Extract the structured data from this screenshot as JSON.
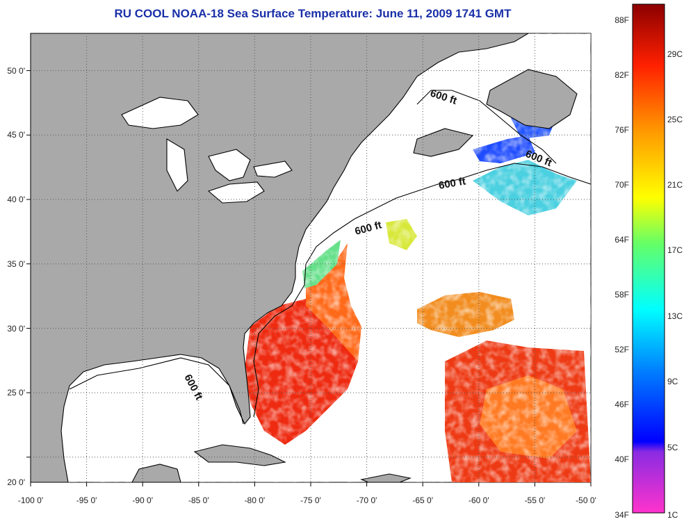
{
  "title": "RU COOL  NOAA-18  Sea Surface Temperature:  June 11, 2009 1741 GMT",
  "map": {
    "lon_ticks": [
      "-100 0'",
      "-95 0'",
      "-90 0'",
      "-85 0'",
      "-80 0'",
      "-75 0'",
      "-70 0'",
      "-65 0'",
      "-60 0'",
      "-55 0'",
      "-50 0'"
    ],
    "lat_ticks": [
      "50 0'",
      "45 0'",
      "40 0'",
      "35 0'",
      "30 0'",
      "25 0'",
      "20 0'"
    ],
    "depth_label": "600 ft",
    "land_color": "#a9a9a9",
    "cloud_color": "#ffffff"
  },
  "colorbar": {
    "fahrenheit_labels": [
      "88F",
      "82F",
      "76F",
      "70F",
      "64F",
      "58F",
      "52F",
      "46F",
      "40F",
      "34F"
    ],
    "celsius_labels": [
      "29C",
      "25C",
      "21C",
      "17C",
      "13C",
      "9C",
      "5C",
      "1C"
    ]
  }
}
